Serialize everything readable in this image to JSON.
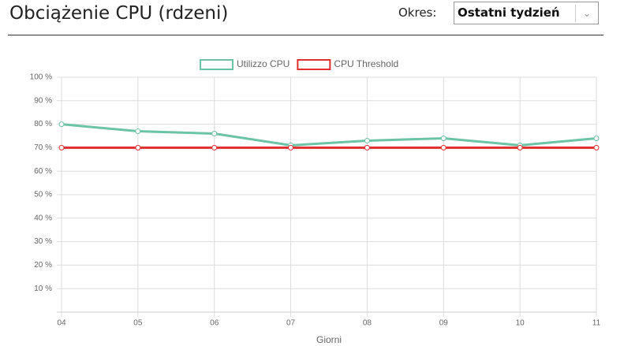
{
  "header": {
    "title": "Obciążenie CPU (rdzeni)",
    "period_label": "Okres:",
    "period_value": "Ostatni tydzień"
  },
  "chart_data": {
    "type": "line",
    "x_label": "Giorni",
    "categories": [
      "04",
      "05",
      "06",
      "07",
      "08",
      "09",
      "10",
      "11"
    ],
    "series": [
      {
        "name": "Utilizzo CPU",
        "color": "#6cc3a6",
        "values": [
          80,
          77,
          76,
          71,
          73,
          74,
          71,
          74
        ]
      },
      {
        "name": "CPU Threshold",
        "color": "#e12f2f",
        "values": [
          70,
          70,
          70,
          70,
          70,
          70,
          70,
          70
        ]
      }
    ],
    "ylim": [
      0,
      100
    ],
    "yticks": [
      {
        "value": 10,
        "label": "10 %"
      },
      {
        "value": 20,
        "label": "20 %"
      },
      {
        "value": 30,
        "label": "30 %"
      },
      {
        "value": 40,
        "label": "40 %"
      },
      {
        "value": 50,
        "label": "50 %"
      },
      {
        "value": 60,
        "label": "60 %"
      },
      {
        "value": 70,
        "label": "70 %"
      },
      {
        "value": 80,
        "label": "80 %"
      },
      {
        "value": 90,
        "label": "90 %"
      },
      {
        "value": 100,
        "label": "100 %"
      }
    ],
    "grid": true,
    "legend": "top"
  }
}
